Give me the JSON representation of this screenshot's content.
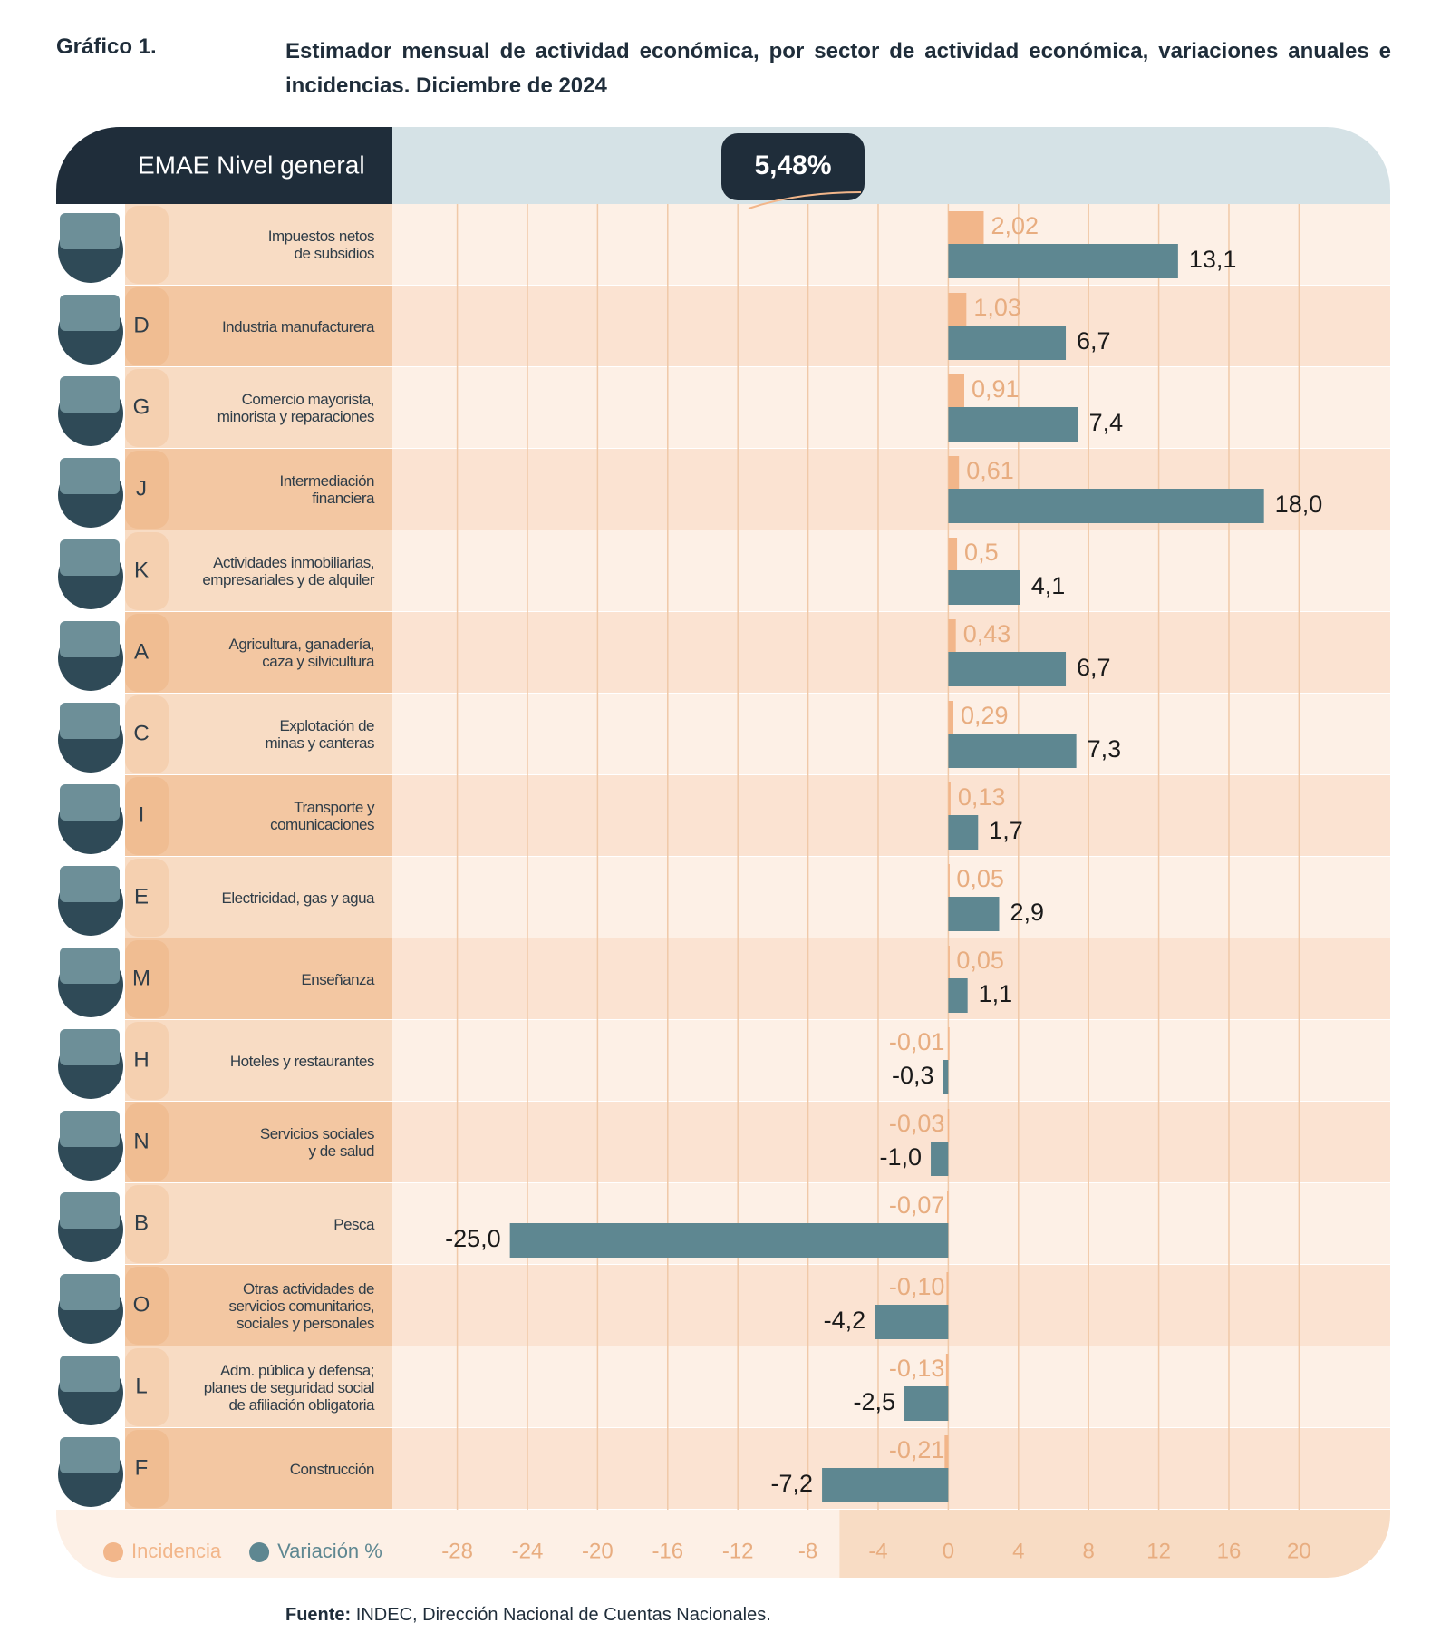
{
  "chart_data": {
    "type": "bar",
    "label": "Gráfico 1.",
    "title": "Estimador mensual de actividad económica, por sector de actividad económica, variaciones anuales e incidencias. Diciembre de 2024",
    "header_label": "EMAE Nivel general",
    "header_value": "5,48%",
    "categories": [
      "Impuestos netos\nde subsidios",
      "Industria manufacturera",
      "Comercio mayorista,\nminorista y reparaciones",
      "Intermediación\nfinanciera",
      "Actividades inmobiliarias,\nempresariales y de alquiler",
      "Agricultura, ganadería,\ncaza y silvicultura",
      "Explotación de\nminas y canteras",
      "Transporte y\ncomunicaciones",
      "Electricidad, gas y agua",
      "Enseñanza",
      "Hoteles y restaurantes",
      "Servicios sociales\ny de salud",
      "Pesca",
      "Otras actividades de\nservicios comunitarios,\nsociales y personales",
      "Adm. pública y defensa;\nplanes de seguridad social\nde afiliación obligatoria",
      "Construcción"
    ],
    "codes": [
      null,
      "D",
      "G",
      "J",
      "K",
      "A",
      "C",
      "I",
      "E",
      "M",
      "H",
      "N",
      "B",
      "O",
      "L",
      "F"
    ],
    "series": [
      {
        "name": "Incidencia",
        "color": "#f2b68a",
        "values": [
          2.02,
          1.03,
          0.91,
          0.61,
          0.5,
          0.43,
          0.29,
          0.13,
          0.05,
          0.05,
          -0.01,
          -0.03,
          -0.07,
          -0.1,
          -0.13,
          -0.21
        ],
        "value_labels": [
          "2,02",
          "1,03",
          "0,91",
          "0,61",
          "0,5",
          "0,43",
          "0,29",
          "0,13",
          "0,05",
          "0,05",
          "-0,01",
          "-0,03",
          "-0,07",
          "-0,10",
          "-0,13",
          "-0,21"
        ]
      },
      {
        "name": "Variación %",
        "color": "#5e8791",
        "values": [
          13.1,
          6.7,
          7.4,
          18.0,
          4.1,
          6.7,
          7.3,
          1.7,
          2.9,
          1.1,
          -0.3,
          -1.0,
          -25.0,
          -4.2,
          -2.5,
          -7.2
        ],
        "value_labels": [
          "13,1",
          "6,7",
          "7,4",
          "18,0",
          "4,1",
          "6,7",
          "7,3",
          "1,7",
          "2,9",
          "1,1",
          "-0,3",
          "-1,0",
          "-25,0",
          "-4,2",
          "-2,5",
          "-7,2"
        ]
      }
    ],
    "xlim": [
      -31.7,
      25.2
    ],
    "xticks": [
      -28,
      -24,
      -20,
      -16,
      -12,
      -8,
      -4,
      0,
      4,
      8,
      12,
      16,
      20
    ],
    "grid": true,
    "source_label": "Fuente:",
    "source": "INDEC, Dirección Nacional de Cuentas Nacionales."
  }
}
